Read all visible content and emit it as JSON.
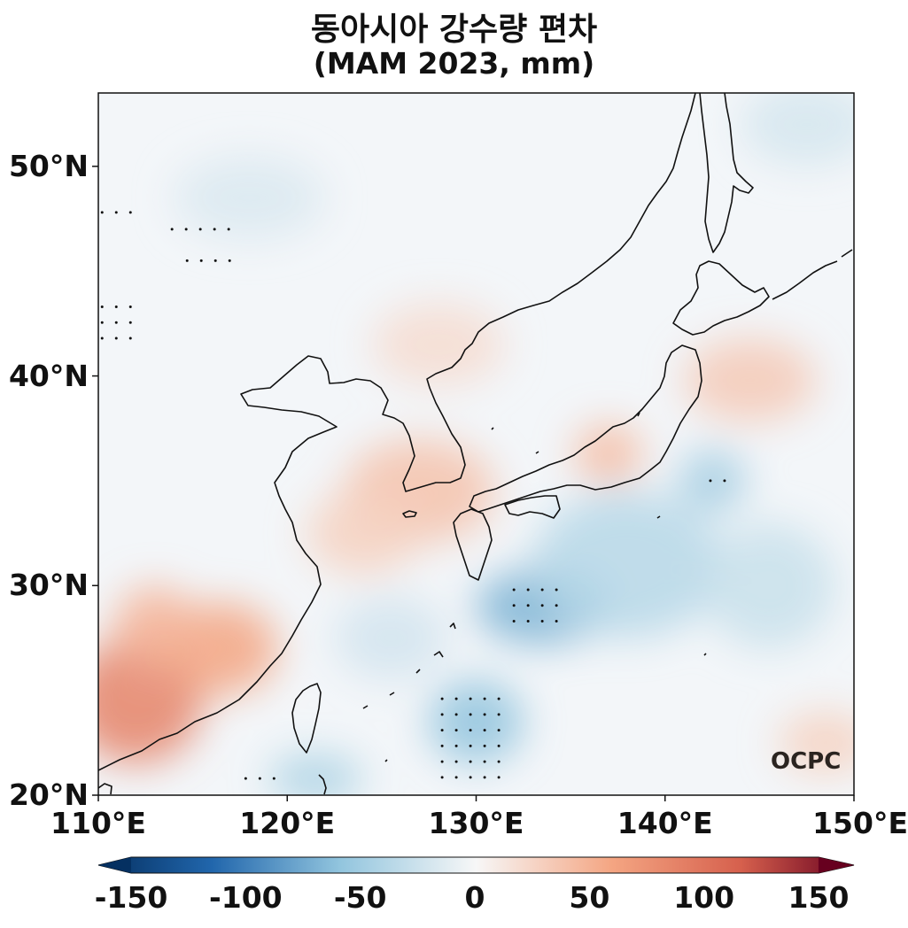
{
  "title": {
    "line1": "동아시아 강수량 편차",
    "line2": "(MAM 2023, mm)"
  },
  "map": {
    "lon_range": [
      110,
      150
    ],
    "lat_range": [
      20,
      53.5
    ],
    "lat_ticks": [
      {
        "value": 50,
        "label": "50°N"
      },
      {
        "value": 40,
        "label": "40°N"
      },
      {
        "value": 30,
        "label": "30°N"
      },
      {
        "value": 20,
        "label": "20°N"
      }
    ],
    "lon_ticks": [
      {
        "value": 110,
        "label": "110°E"
      },
      {
        "value": 120,
        "label": "120°E"
      },
      {
        "value": 130,
        "label": "130°E"
      },
      {
        "value": 140,
        "label": "140°E"
      },
      {
        "value": 150,
        "label": "150°E"
      }
    ],
    "anomaly_blobs": [
      {
        "lon": 112.0,
        "lat": 24.5,
        "rlon": 3.5,
        "rlat": 3.0,
        "value": 80
      },
      {
        "lon": 116.5,
        "lat": 27.0,
        "rlon": 3.0,
        "rlat": 2.2,
        "value": 55
      },
      {
        "lon": 113.0,
        "lat": 28.0,
        "rlon": 2.2,
        "rlat": 2.0,
        "value": 45
      },
      {
        "lon": 127.0,
        "lat": 34.5,
        "rlon": 4.0,
        "rlat": 2.5,
        "value": 35
      },
      {
        "lon": 124.0,
        "lat": 32.5,
        "rlon": 3.0,
        "rlat": 2.0,
        "value": 25
      },
      {
        "lon": 137.0,
        "lat": 36.3,
        "rlon": 1.8,
        "rlat": 1.4,
        "value": 40
      },
      {
        "lon": 144.5,
        "lat": 39.8,
        "rlon": 3.5,
        "rlat": 2.0,
        "value": 30
      },
      {
        "lon": 128.0,
        "lat": 41.5,
        "rlon": 3.5,
        "rlat": 2.0,
        "value": 18
      },
      {
        "lon": 148.5,
        "lat": 22.5,
        "rlon": 2.5,
        "rlat": 1.5,
        "value": 25
      },
      {
        "lon": 133.5,
        "lat": 29.0,
        "rlon": 3.5,
        "rlat": 1.8,
        "value": -65
      },
      {
        "lon": 130.0,
        "lat": 23.5,
        "rlon": 2.5,
        "rlat": 2.0,
        "value": -55
      },
      {
        "lon": 142.5,
        "lat": 35.0,
        "rlon": 1.8,
        "rlat": 1.5,
        "value": -45
      },
      {
        "lon": 138.0,
        "lat": 31.0,
        "rlon": 5.0,
        "rlat": 3.5,
        "value": -35
      },
      {
        "lon": 121.5,
        "lat": 20.8,
        "rlon": 2.5,
        "rlat": 1.2,
        "value": -40
      },
      {
        "lon": 125.5,
        "lat": 27.5,
        "rlon": 3.0,
        "rlat": 2.0,
        "value": -20
      },
      {
        "lon": 145.5,
        "lat": 30.0,
        "rlon": 3.5,
        "rlat": 3.0,
        "value": -25
      },
      {
        "lon": 147.5,
        "lat": 52.0,
        "rlon": 3.5,
        "rlat": 2.0,
        "value": -18
      },
      {
        "lon": 118.0,
        "lat": 48.5,
        "rlon": 4.0,
        "rlat": 2.0,
        "value": -15
      }
    ],
    "stipple_groups": [
      {
        "lon0": 110.2,
        "lon1": 112.4,
        "lat0": 47.8,
        "lat1": 47.8
      },
      {
        "lon0": 113.9,
        "lon1": 117.6,
        "lat0": 46.3,
        "lat1": 47.0
      },
      {
        "lon0": 114.7,
        "lon1": 117.0,
        "lat0": 44.8,
        "lat1": 45.5
      },
      {
        "lon0": 110.2,
        "lon1": 111.7,
        "lat0": 41.8,
        "lat1": 43.3
      },
      {
        "lon0": 132.0,
        "lon1": 134.3,
        "lat0": 28.3,
        "lat1": 29.8
      },
      {
        "lon0": 128.2,
        "lon1": 131.9,
        "lat0": 20.8,
        "lat1": 24.6
      },
      {
        "lon0": 117.8,
        "lon1": 119.4,
        "lat0": 20.8,
        "lat1": 20.8
      },
      {
        "lon0": 142.4,
        "lon1": 143.2,
        "lat0": 35.0,
        "lat1": 35.0
      }
    ],
    "source_logo": "OCPC"
  },
  "colorbar": {
    "range": [
      -150,
      150
    ],
    "ticks": [
      {
        "value": -150,
        "label": "-150"
      },
      {
        "value": -100,
        "label": "-100"
      },
      {
        "value": -50,
        "label": "-50"
      },
      {
        "value": 0,
        "label": "0"
      },
      {
        "value": 50,
        "label": "50"
      },
      {
        "value": 100,
        "label": "100"
      },
      {
        "value": 150,
        "label": "150"
      }
    ],
    "colors": {
      "neg_dark": "#053061",
      "neg_mid": "#2166ac",
      "neg_light": "#92c5de",
      "zero": "#f7f7f7",
      "pos_light": "#f4a582",
      "pos_mid": "#d6604d",
      "pos_dark": "#67001f"
    }
  }
}
